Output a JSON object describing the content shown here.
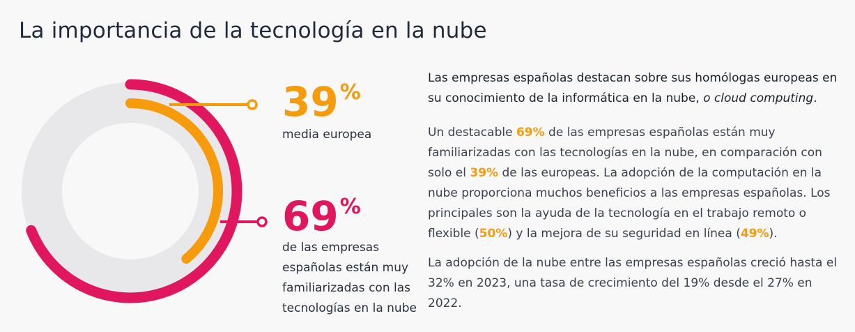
{
  "title": "La importancia de la tecnología en la nube",
  "chart_data": {
    "type": "radial_bar",
    "unit": "%",
    "series": [
      {
        "value": 39,
        "label": "media europea",
        "color": "#f59b0c"
      },
      {
        "value": 69,
        "label": "de las empresas españolas están muy familiarizadas con las tecnologías en la nube",
        "color": "#e0175e"
      }
    ],
    "track_color": "#e8e8eb"
  },
  "stats": {
    "european": {
      "value": "39",
      "pct": "%",
      "desc": "media europea"
    },
    "spanish": {
      "value": "69",
      "pct": "%",
      "desc_lines": [
        "de las empresas",
        "españolas están muy",
        "familiarizadas con las",
        "tecnologías en la nube"
      ]
    }
  },
  "lead": {
    "part1": "Las empresas españolas destacan sobre sus homólogas europeas en su conocimiento de la informática en la nube, ",
    "italic": "o cloud computing",
    "part2": "."
  },
  "p1": {
    "t1": "Un destacable ",
    "h1": "69%",
    "t2": " de las empresas españolas están muy familiarizadas con las tecnologías en la nube, en comparación con solo el ",
    "h2": "39%",
    "t3": " de las europeas. La adopción de la computación en la nube proporciona muchos beneficios a las empresas españolas. Los principales son la ayuda de la tecnología en el trabajo remoto o flexible (",
    "h3": "50%",
    "t4": ") y la mejora de su seguridad en línea (",
    "h4": "49%",
    "t5": ")."
  },
  "p2": "La adopción de la nube entre las empresas españolas creció hasta el 32% en 2023, una tasa de crecimiento del 19% desde el 27% en 2022."
}
